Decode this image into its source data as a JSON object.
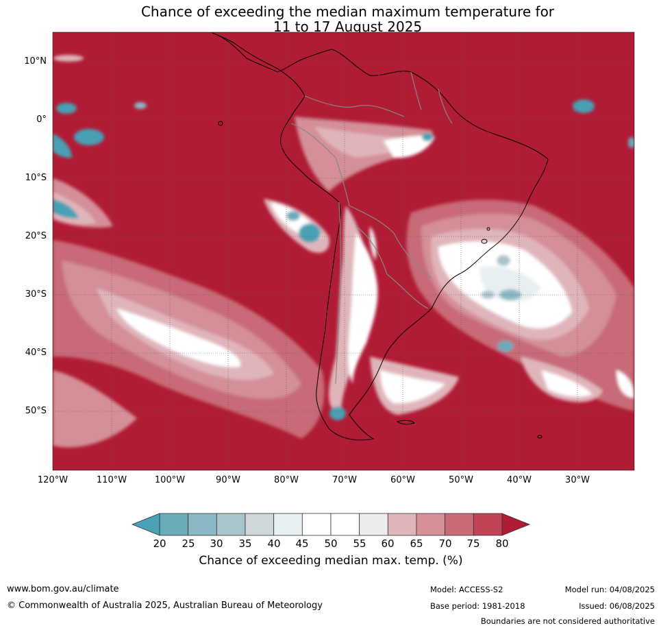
{
  "title": {
    "line1": "Chance of exceeding the median maximum temperature for",
    "line2": "11 to 17 August 2025"
  },
  "map": {
    "lat_labels": [
      "10°N",
      "0°",
      "10°S",
      "20°S",
      "30°S",
      "40°S",
      "50°S"
    ],
    "lon_labels": [
      "120°W",
      "110°W",
      "100°W",
      "90°W",
      "80°W",
      "70°W",
      "60°W",
      "50°W",
      "40°W",
      "30°W"
    ],
    "colors": {
      "high": "#b01b35",
      "c75": "#c14355",
      "c70": "#c86b77",
      "c65": "#d48f97",
      "c60": "#e0b5ba",
      "c55": "#ececec",
      "white": "#ffffff",
      "c40": "#e8eff1",
      "c35": "#cfd7d8",
      "c30": "#a9c5cb",
      "c25": "#8ab7c4",
      "c20": "#6aabb9",
      "low": "#4aa0b4"
    }
  },
  "colorbar": {
    "ticks": [
      "20",
      "25",
      "30",
      "35",
      "40",
      "45",
      "50",
      "55",
      "60",
      "65",
      "70",
      "75",
      "80"
    ],
    "colors": [
      "#6aabb9",
      "#8ab7c4",
      "#a9c5cb",
      "#cfd7d8",
      "#e8eff1",
      "#ffffff",
      "#ffffff",
      "#ececec",
      "#e0b5ba",
      "#d48f97",
      "#c86b77",
      "#c14355"
    ],
    "low_color": "#4aa0b4",
    "high_color": "#b01b35",
    "label": "Chance of exceeding median max. temp. (%)"
  },
  "footer": {
    "website": "www.bom.gov.au/climate",
    "copyright": "© Commonwealth of Australia 2025, Australian Bureau of Meteorology",
    "model": "Model: ACCESS-S2",
    "base_period": "Base period: 1981-2018",
    "model_run": "Model run: 04/08/2025",
    "issued": "Issued: 06/08/2025",
    "disclaimer": "Boundaries are not considered authoritative"
  }
}
